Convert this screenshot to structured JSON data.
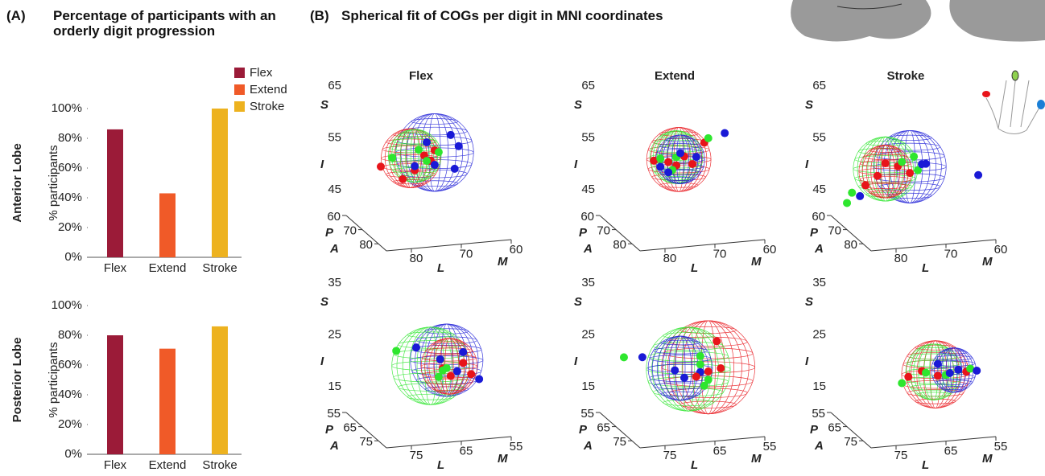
{
  "header": {
    "a_label": "(A)",
    "a_title": "Percentage of participants with an orderly digit progression",
    "b_label": "(B)",
    "b_title": "Spherical fit of COGs per digit in MNI coordinates"
  },
  "chart_data": [
    {
      "type": "bar",
      "row_label": "Anterior Lobe",
      "ylabel": "% participants",
      "categories": [
        "Flex",
        "Extend",
        "Stroke"
      ],
      "values": [
        86,
        43,
        100
      ],
      "colors": [
        "#9b1b38",
        "#f05a28",
        "#edb21f"
      ],
      "ylim": [
        0,
        100
      ],
      "yticks": [
        {
          "value": 0,
          "label": "0%"
        },
        {
          "value": 20,
          "label": "20%"
        },
        {
          "value": 40,
          "label": "40%"
        },
        {
          "value": 60,
          "label": "60%"
        },
        {
          "value": 80,
          "label": "80%"
        },
        {
          "value": 100,
          "label": "100%"
        }
      ],
      "legend": true
    },
    {
      "type": "bar",
      "row_label": "Posterior Lobe",
      "ylabel": "% participants",
      "categories": [
        "Flex",
        "Extend",
        "Stroke"
      ],
      "values": [
        80,
        71,
        86
      ],
      "colors": [
        "#9b1b38",
        "#f05a28",
        "#edb21f"
      ],
      "ylim": [
        0,
        100
      ],
      "yticks": [
        {
          "value": 0,
          "label": "0%"
        },
        {
          "value": 20,
          "label": "20%"
        },
        {
          "value": 40,
          "label": "40%"
        },
        {
          "value": 60,
          "label": "60%"
        },
        {
          "value": 80,
          "label": "80%"
        },
        {
          "value": 100,
          "label": "100%"
        }
      ],
      "legend": false
    },
    {
      "type": "scatter3d",
      "title": "Flex",
      "xlim": [
        85,
        60
      ],
      "ylim": [
        85,
        60
      ],
      "zlim": [
        40,
        65
      ],
      "xticks": [
        80,
        70,
        60
      ],
      "yticks": [
        60,
        70,
        80
      ],
      "zticks": [
        45,
        55,
        65
      ],
      "xlabels": [
        "L",
        "M"
      ],
      "ylabels": [
        "P",
        "A"
      ],
      "zlabels": [
        "S",
        "I"
      ],
      "spheres": [
        {
          "color": "#1a1ad6",
          "cx": 71.3,
          "cz": 54.4,
          "r": 7.5
        },
        {
          "color": "#e8141a",
          "cx": 76.1,
          "cz": 53.7,
          "r": 5.7
        },
        {
          "color": "#2ee62e",
          "cx": 75.3,
          "cz": 54.1,
          "r": 5.1
        }
      ],
      "series": [
        {
          "color": "#e8141a",
          "x": [
            82.1,
            73.4,
            71.3,
            72.1,
            77.7,
            75.3
          ],
          "z": [
            52.6,
            54.0,
            54.8,
            52.9,
            49.8,
            51.3
          ]
        },
        {
          "color": "#2ee62e",
          "x": [
            79.8,
            74.5,
            72.9,
            70.5
          ],
          "z": [
            54.1,
            55.2,
            52.9,
            54.4
          ]
        },
        {
          "color": "#1a1ad6",
          "x": [
            68.1,
            66.5,
            71.3,
            75.3,
            67.3,
            72.9
          ],
          "z": [
            57.5,
            55.2,
            52.0,
            52.1,
            50.9,
            56.5
          ]
        }
      ]
    },
    {
      "type": "scatter3d",
      "title": "Extend",
      "xlim": [
        85,
        60
      ],
      "ylim": [
        85,
        60
      ],
      "zlim": [
        40,
        65
      ],
      "xticks": [
        80,
        70,
        60
      ],
      "yticks": [
        60,
        70,
        80
      ],
      "zticks": [
        45,
        55,
        65
      ],
      "xlabels": [
        "L",
        "M"
      ],
      "ylabels": [
        "P",
        "A"
      ],
      "zlabels": [
        "S",
        "I"
      ],
      "spheres": [
        {
          "color": "#e8141a",
          "cx": 73.2,
          "cz": 53.2,
          "r": 6.2
        },
        {
          "color": "#2ee62e",
          "cx": 73.7,
          "cz": 53.7,
          "r": 5.1
        },
        {
          "color": "#1a1ad6",
          "cx": 72.9,
          "cz": 53.2,
          "r": 4.7
        }
      ],
      "series": [
        {
          "color": "#e8141a",
          "x": [
            78.2,
            75.3,
            72.1,
            68.1,
            70.5,
            73.7
          ],
          "z": [
            53.4,
            52.9,
            53.7,
            56.0,
            52.1,
            52.1
          ]
        },
        {
          "color": "#2ee62e",
          "x": [
            76.9,
            73.7,
            67.3,
            74.5
          ],
          "z": [
            53.7,
            53.7,
            56.8,
            51.3
          ]
        },
        {
          "color": "#1a1ad6",
          "x": [
            64.0,
            76.9,
            72.9,
            69.7,
            75.3
          ],
          "z": [
            57.5,
            52.1,
            54.4,
            53.4,
            50.9
          ]
        }
      ]
    },
    {
      "type": "scatter3d",
      "title": "Stroke",
      "xlim": [
        85,
        60
      ],
      "ylim": [
        85,
        60
      ],
      "zlim": [
        40,
        65
      ],
      "xticks": [
        80,
        70,
        60
      ],
      "yticks": [
        60,
        70,
        80
      ],
      "zticks": [
        45,
        55,
        65
      ],
      "xlabels": [
        "L",
        "M"
      ],
      "ylabels": [
        "P",
        "A"
      ],
      "zlabels": [
        "S",
        "I"
      ],
      "spheres": [
        {
          "color": "#1a1ad6",
          "cx": 73.2,
          "cz": 51.8,
          "r": 7.0
        },
        {
          "color": "#2ee62e",
          "cx": 78.1,
          "cz": 51.8,
          "r": 6.2
        },
        {
          "color": "#e8141a",
          "cx": 78.1,
          "cz": 51.3,
          "r": 5.1
        }
      ],
      "series": [
        {
          "color": "#e8141a",
          "x": [
            82.1,
            78.1,
            75.6,
            79.7,
            73.2
          ],
          "z": [
            49.0,
            52.9,
            52.1,
            50.6,
            50.6
          ]
        },
        {
          "color": "#2ee62e",
          "x": [
            85.8,
            84.8,
            74.8,
            71.6,
            72.4
          ],
          "z": [
            45.9,
            47.8,
            52.9,
            51.0,
            53.7
          ]
        },
        {
          "color": "#1a1ad6",
          "x": [
            83.2,
            70.8,
            70.0,
            59.5
          ],
          "z": [
            47.0,
            52.1,
            52.1,
            49.0
          ]
        }
      ]
    },
    {
      "type": "scatter3d",
      "xlim": [
        80,
        55
      ],
      "ylim": [
        80,
        55
      ],
      "zlim": [
        10,
        35
      ],
      "xticks": [
        75,
        65,
        55
      ],
      "yticks": [
        55,
        65,
        75
      ],
      "zticks": [
        15,
        25,
        35
      ],
      "xlabels": [
        "L",
        "M"
      ],
      "ylabels": [
        "P",
        "A"
      ],
      "zlabels": [
        "S",
        "I"
      ],
      "spheres": [
        {
          "color": "#1a1ad6",
          "cx": 63.9,
          "cz": 22.1,
          "r": 7.0
        },
        {
          "color": "#2ee62e",
          "cx": 67.1,
          "cz": 21.3,
          "r": 7.5
        },
        {
          "color": "#e8141a",
          "cx": 63.4,
          "cz": 20.9,
          "r": 5.4
        }
      ],
      "series": [
        {
          "color": "#e8141a",
          "x": [
            64.7,
            60.6,
            59.0,
            63.1
          ],
          "z": [
            20.6,
            21.3,
            19.0,
            19.0
          ]
        },
        {
          "color": "#2ee62e",
          "x": [
            74.0,
            64.7,
            63.9,
            65.5
          ],
          "z": [
            24.8,
            20.2,
            20.6,
            19.0
          ]
        },
        {
          "color": "#1a1ad6",
          "x": [
            70.0,
            60.6,
            57.4,
            61.8,
            65.2
          ],
          "z": [
            25.1,
            23.4,
            17.9,
            19.8,
            22.4
          ]
        }
      ]
    },
    {
      "type": "scatter3d",
      "xlim": [
        80,
        55
      ],
      "ylim": [
        80,
        55
      ],
      "zlim": [
        10,
        35
      ],
      "xticks": [
        75,
        65,
        55
      ],
      "yticks": [
        55,
        65,
        75
      ],
      "zticks": [
        15,
        25,
        35
      ],
      "xlabels": [
        "L",
        "M"
      ],
      "ylabels": [
        "P",
        "A"
      ],
      "zlabels": [
        "S",
        "I"
      ],
      "spheres": [
        {
          "color": "#e8141a",
          "cx": 62.3,
          "cz": 20.6,
          "r": 9.0
        },
        {
          "color": "#2ee62e",
          "cx": 66.3,
          "cz": 20.6,
          "r": 8.1
        },
        {
          "color": "#1a1ad6",
          "cx": 67.9,
          "cz": 20.9,
          "r": 6.2
        }
      ],
      "series": [
        {
          "color": "#2ee62e",
          "x": [
            79.2,
            63.9,
            62.3,
            63.1,
            63.9
          ],
          "z": [
            24.0,
            21.3,
            18.2,
            17.1,
            22.9
          ]
        },
        {
          "color": "#1a1ad6",
          "x": [
            75.5,
            69.0,
            67.1,
            63.9
          ],
          "z": [
            23.7,
            20.6,
            19.0,
            19.8
          ]
        },
        {
          "color": "#e8141a",
          "x": [
            60.6,
            59.8,
            62.3,
            64.7
          ],
          "z": [
            25.5,
            20.2,
            19.8,
            19.0
          ]
        }
      ]
    },
    {
      "type": "scatter3d",
      "xlim": [
        80,
        55
      ],
      "ylim": [
        80,
        55
      ],
      "zlim": [
        10,
        35
      ],
      "xticks": [
        75,
        65,
        55
      ],
      "yticks": [
        55,
        65,
        75
      ],
      "zticks": [
        15,
        25,
        35
      ],
      "xlabels": [
        "L",
        "M"
      ],
      "ylabels": [
        "P",
        "A"
      ],
      "zlabels": [
        "S",
        "I"
      ],
      "spheres": [
        {
          "color": "#e8141a",
          "cx": 63.1,
          "cz": 19.3,
          "r": 6.5
        },
        {
          "color": "#2ee62e",
          "cx": 63.4,
          "cz": 19.8,
          "r": 5.4
        },
        {
          "color": "#1a1ad6",
          "cx": 59.4,
          "cz": 19.8,
          "r": 4.3
        }
      ],
      "series": [
        {
          "color": "#e8141a",
          "x": [
            68.5,
            65.8,
            56.9,
            62.6
          ],
          "z": [
            19.3,
            20.2,
            19.3,
            19.0
          ]
        },
        {
          "color": "#2ee62e",
          "x": [
            69.8,
            65.0,
            56.1,
            61.0
          ],
          "z": [
            18.2,
            19.8,
            19.8,
            19.0
          ]
        },
        {
          "color": "#1a1ad6",
          "x": [
            62.6,
            60.2,
            54.8,
            58.5
          ],
          "z": [
            21.3,
            19.3,
            19.3,
            19.8
          ]
        }
      ]
    }
  ]
}
